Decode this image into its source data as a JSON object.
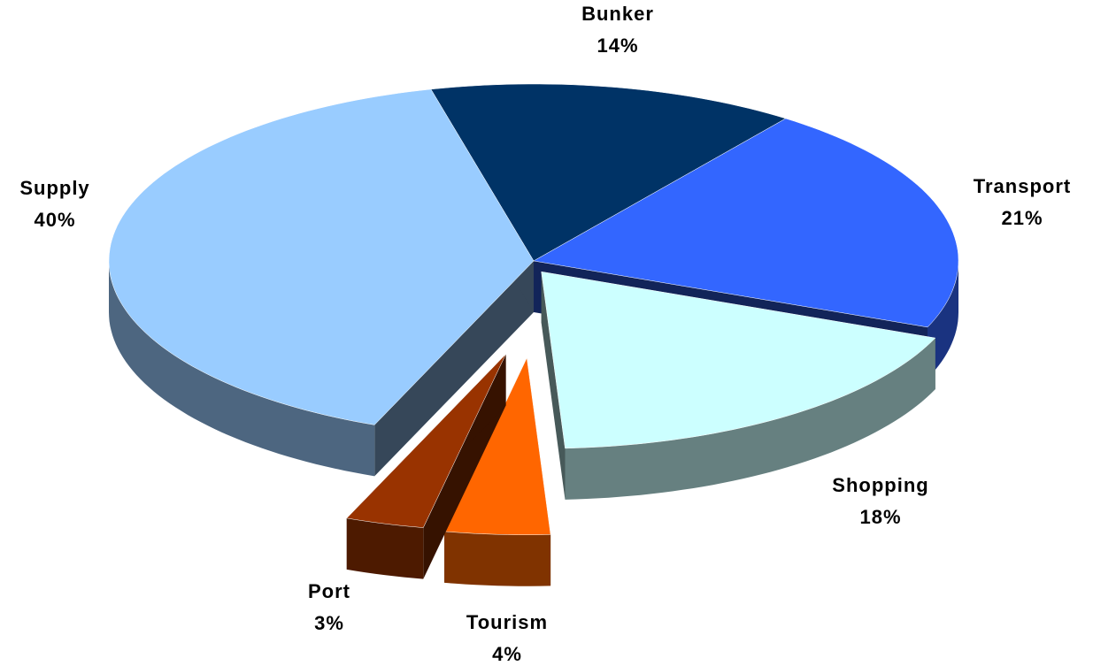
{
  "chart_data": {
    "type": "pie",
    "categories": [
      "Bunker",
      "Transport",
      "Shopping",
      "Tourism",
      "Port",
      "Supply"
    ],
    "values": [
      14,
      21,
      18,
      4,
      3,
      40
    ],
    "value_labels": [
      "14%",
      "21%",
      "18%",
      "4%",
      "3%",
      "40%"
    ],
    "colors": [
      "#003366",
      "#3366ff",
      "#ccffff",
      "#ff6600",
      "#993300",
      "#99ccff"
    ]
  }
}
